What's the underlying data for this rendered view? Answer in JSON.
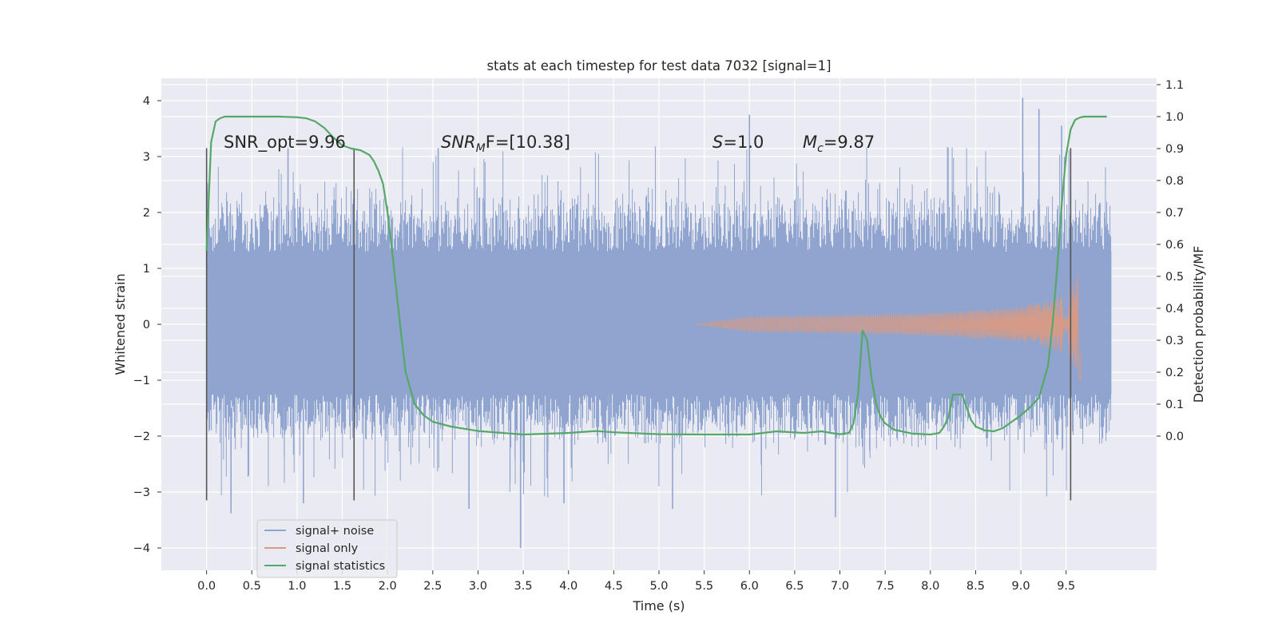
{
  "chart_data": {
    "type": "line",
    "title": "stats at each timestep for test data 7032 [signal=1]",
    "xlabel": "Time (s)",
    "ylabel": "Whitened strain",
    "ylabel_right": "Detection probability/MF",
    "xlim": [
      -0.5,
      10.5
    ],
    "ylim": [
      -4.4,
      4.4
    ],
    "ylim_right": [
      -0.42,
      1.12
    ],
    "grid": true,
    "legend_position": "bottom-left",
    "x_ticks": [
      "0.0",
      "0.5",
      "1.0",
      "1.5",
      "2.0",
      "2.5",
      "3.0",
      "3.5",
      "4.0",
      "4.5",
      "5.0",
      "5.5",
      "6.0",
      "6.5",
      "7.0",
      "7.5",
      "8.0",
      "8.5",
      "9.0",
      "9.5"
    ],
    "y_ticks": [
      "4",
      "3",
      "2",
      "1",
      "0",
      "−1",
      "−2",
      "−3",
      "−4"
    ],
    "y_tick_values": [
      4,
      3,
      2,
      1,
      0,
      -1,
      -2,
      -3,
      -4
    ],
    "y_right_ticks": [
      "1.1",
      "1.0",
      "0.9",
      "0.8",
      "0.7",
      "0.6",
      "0.5",
      "0.4",
      "0.3",
      "0.2",
      "0.1",
      "0.0"
    ],
    "y_right_tick_values": [
      1.1,
      1.0,
      0.9,
      0.8,
      0.7,
      0.6,
      0.5,
      0.4,
      0.3,
      0.2,
      0.1,
      0.0
    ],
    "annotations": {
      "snr_opt": "SNR_opt=9.96",
      "snr_mf_base": "SNR",
      "snr_mf_sub": "M",
      "snr_mf_rest": "F=[10.38]",
      "s_var": "S",
      "s_rest": "=1.0",
      "mc_var": "M",
      "mc_sub": "c",
      "mc_rest": "=9.87"
    },
    "vertical_markers": [
      {
        "x": 0.0,
        "y_range": [
          -3.15,
          3.15
        ]
      },
      {
        "x": 1.63,
        "y_range": [
          -3.15,
          3.15
        ]
      },
      {
        "x": 9.55,
        "y_range": [
          -3.15,
          3.15
        ]
      }
    ],
    "series": [
      {
        "name": "signal+ noise",
        "color": "#8fa4cf",
        "type": "noise_band",
        "x_range": [
          0.0,
          10.0
        ],
        "dense_range": [
          -1.25,
          1.3
        ],
        "typical_peak": [
          -2.3,
          2.5
        ],
        "extreme_points": [
          {
            "x": 3.47,
            "y": -4.0
          },
          {
            "x": 9.02,
            "y": 4.05
          },
          {
            "x": 9.2,
            "y": 3.85
          },
          {
            "x": 0.27,
            "y": -3.38
          },
          {
            "x": 6.95,
            "y": -3.45
          },
          {
            "x": 5.15,
            "y": -3.3
          },
          {
            "x": 1.07,
            "y": -3.2
          },
          {
            "x": 0.9,
            "y": 3.15
          },
          {
            "x": 2.56,
            "y": 3.15
          },
          {
            "x": 6.0,
            "y": 3.75
          },
          {
            "x": 9.45,
            "y": 3.55
          },
          {
            "x": 3.95,
            "y": -3.2
          },
          {
            "x": 2.9,
            "y": -3.3
          }
        ]
      },
      {
        "name": "signal only",
        "color": "#dd9a80",
        "type": "chirp",
        "x_start": 5.4,
        "x_end": 9.68,
        "peak_amplitude": 1.25
      },
      {
        "name": "signal statistics",
        "color": "#55a868",
        "axis": "right",
        "x": [
          0.0,
          0.05,
          0.1,
          0.15,
          0.2,
          0.3,
          0.5,
          0.8,
          1.0,
          1.1,
          1.2,
          1.3,
          1.4,
          1.5,
          1.6,
          1.7,
          1.8,
          1.85,
          1.9,
          1.95,
          2.0,
          2.05,
          2.1,
          2.15,
          2.2,
          2.3,
          2.4,
          2.5,
          2.7,
          3.0,
          3.5,
          4.0,
          4.3,
          4.5,
          5.0,
          5.5,
          6.0,
          6.3,
          6.6,
          6.8,
          6.9,
          7.0,
          7.1,
          7.15,
          7.2,
          7.25,
          7.3,
          7.35,
          7.4,
          7.45,
          7.5,
          7.6,
          7.8,
          8.0,
          8.1,
          8.15,
          8.2,
          8.25,
          8.3,
          8.35,
          8.4,
          8.45,
          8.5,
          8.6,
          8.7,
          8.8,
          8.9,
          9.0,
          9.1,
          9.2,
          9.3,
          9.35,
          9.4,
          9.45,
          9.5,
          9.55,
          9.6,
          9.65,
          9.7,
          9.8,
          9.95
        ],
        "values": [
          0.58,
          0.92,
          0.985,
          0.995,
          1.0,
          1.0,
          1.0,
          1.0,
          0.998,
          0.995,
          0.985,
          0.965,
          0.935,
          0.91,
          0.9,
          0.895,
          0.88,
          0.86,
          0.83,
          0.79,
          0.7,
          0.58,
          0.45,
          0.32,
          0.2,
          0.1,
          0.065,
          0.045,
          0.03,
          0.016,
          0.005,
          0.01,
          0.016,
          0.012,
          0.006,
          0.005,
          0.005,
          0.015,
          0.01,
          0.015,
          0.01,
          0.006,
          0.01,
          0.04,
          0.13,
          0.33,
          0.3,
          0.18,
          0.1,
          0.06,
          0.04,
          0.02,
          0.008,
          0.005,
          0.01,
          0.03,
          0.06,
          0.13,
          0.13,
          0.13,
          0.09,
          0.05,
          0.03,
          0.018,
          0.015,
          0.025,
          0.045,
          0.065,
          0.09,
          0.12,
          0.22,
          0.35,
          0.52,
          0.72,
          0.88,
          0.96,
          0.99,
          0.997,
          1.0,
          1.0,
          1.0
        ]
      }
    ]
  }
}
